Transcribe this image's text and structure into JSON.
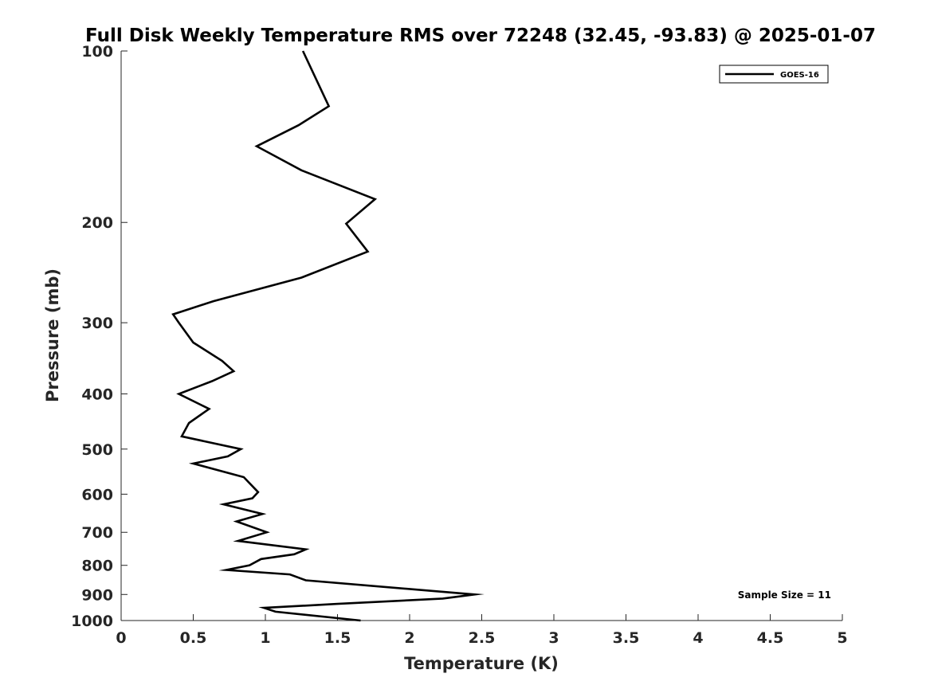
{
  "chart_data": {
    "type": "line",
    "title": "Full Disk Weekly Temperature RMS over 72248 (32.45, -93.83) @ 2025-01-07",
    "xlabel": "Temperature (K)",
    "ylabel": "Pressure (mb)",
    "xlim": [
      0,
      5
    ],
    "ylim": [
      100,
      1000
    ],
    "y_scale": "log",
    "y_reversed": true,
    "grid": false,
    "legend_placement": "top-right",
    "x_ticks": [
      "0",
      "0.5",
      "1",
      "1.5",
      "2",
      "2.5",
      "3",
      "3.5",
      "4",
      "4.5",
      "5"
    ],
    "y_ticks": [
      "100",
      "200",
      "300",
      "400",
      "500",
      "600",
      "700",
      "800",
      "900",
      "1000"
    ],
    "annotation": "Sample Size = 11",
    "series": [
      {
        "name": "GOES-16",
        "color": "#000000",
        "points": [
          [
            1.26,
            100
          ],
          [
            1.44,
            125
          ],
          [
            1.23,
            135
          ],
          [
            0.94,
            147
          ],
          [
            1.25,
            162
          ],
          [
            1.76,
            182
          ],
          [
            1.56,
            201
          ],
          [
            1.71,
            225
          ],
          [
            1.25,
            250
          ],
          [
            0.64,
            275
          ],
          [
            0.36,
            290
          ],
          [
            0.4,
            300
          ],
          [
            0.5,
            325
          ],
          [
            0.7,
            350
          ],
          [
            0.78,
            365
          ],
          [
            0.63,
            380
          ],
          [
            0.4,
            400
          ],
          [
            0.61,
            425
          ],
          [
            0.47,
            450
          ],
          [
            0.42,
            475
          ],
          [
            0.83,
            500
          ],
          [
            0.74,
            515
          ],
          [
            0.5,
            530
          ],
          [
            0.85,
            560
          ],
          [
            0.95,
            595
          ],
          [
            0.91,
            610
          ],
          [
            0.71,
            625
          ],
          [
            0.98,
            650
          ],
          [
            0.8,
            670
          ],
          [
            1.01,
            700
          ],
          [
            0.81,
            725
          ],
          [
            1.28,
            750
          ],
          [
            1.2,
            765
          ],
          [
            0.97,
            780
          ],
          [
            0.89,
            800
          ],
          [
            0.73,
            815
          ],
          [
            1.17,
            830
          ],
          [
            1.28,
            850
          ],
          [
            2.45,
            900
          ],
          [
            2.23,
            915
          ],
          [
            1.5,
            935
          ],
          [
            0.99,
            950
          ],
          [
            1.07,
            965
          ],
          [
            1.66,
            1000
          ]
        ]
      }
    ]
  }
}
